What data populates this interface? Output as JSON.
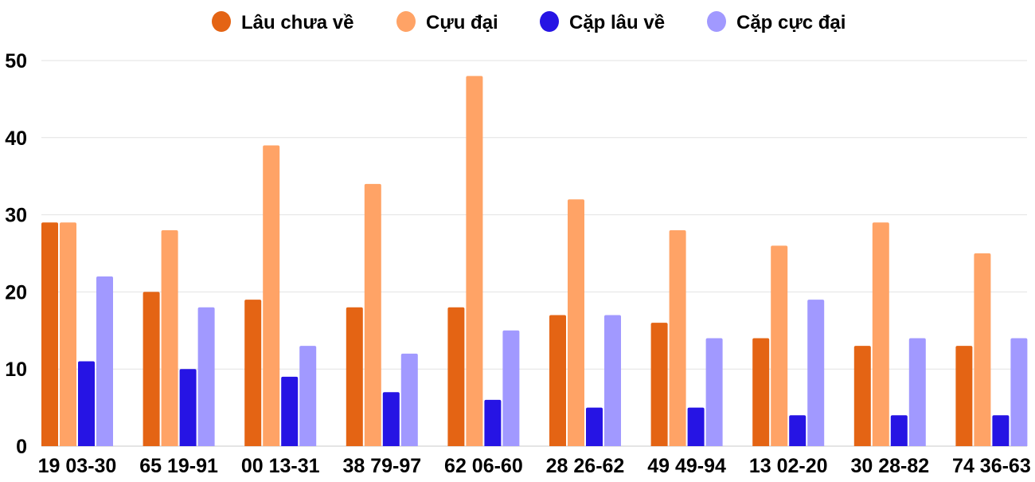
{
  "chart_data": {
    "type": "bar",
    "title": "",
    "xlabel": "",
    "ylabel": "",
    "ylim": [
      0,
      50
    ],
    "yticks": [
      0,
      10,
      20,
      30,
      40,
      50
    ],
    "grid": true,
    "legend_position": "top",
    "categories": [
      "19 03-30",
      "65 19-91",
      "00 13-31",
      "38 79-97",
      "62 06-60",
      "28 26-62",
      "49 49-94",
      "13 02-20",
      "30 28-82",
      "74 36-63"
    ],
    "series": [
      {
        "name": "Lâu chưa về",
        "color": "#e46414",
        "values": [
          29,
          20,
          19,
          18,
          18,
          17,
          16,
          14,
          13,
          13
        ]
      },
      {
        "name": "Cựu đại",
        "color": "#ffa366",
        "values": [
          29,
          28,
          39,
          34,
          48,
          32,
          28,
          26,
          29,
          25
        ]
      },
      {
        "name": "Cặp lâu về",
        "color": "#2614e4",
        "values": [
          11,
          10,
          9,
          7,
          6,
          5,
          5,
          4,
          4,
          4
        ]
      },
      {
        "name": "Cặp cực đại",
        "color": "#a199ff",
        "values": [
          22,
          18,
          13,
          12,
          15,
          17,
          14,
          19,
          14,
          14
        ]
      }
    ]
  }
}
